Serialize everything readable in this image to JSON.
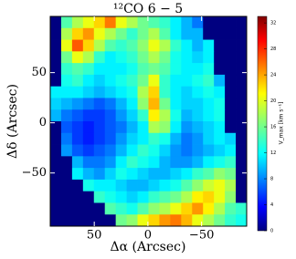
{
  "chart_data": {
    "type": "heatmap",
    "title": "¹²CO 6 − 5",
    "x_label": "Δα (Arcsec)",
    "y_label": "Δδ (Arcsec)",
    "colorbar_label": "V_max [km s⁻¹]",
    "xlim": [
      91,
      -92
    ],
    "ylim": [
      -103,
      106
    ],
    "xticks": [
      50,
      0,
      {
        "value": -50,
        "label": "−50"
      }
    ],
    "yticks": [
      50,
      0,
      {
        "value": -50,
        "label": "−50"
      }
    ],
    "clim": [
      0,
      33
    ],
    "cticks": [
      0,
      4,
      8,
      12,
      16,
      20,
      24,
      28,
      32
    ],
    "colormap": "jet",
    "z": [
      [
        0,
        15,
        18,
        20,
        22,
        25,
        20,
        18,
        16,
        15,
        14,
        12,
        10,
        8,
        0,
        0,
        0,
        0
      ],
      [
        0,
        18,
        22,
        24,
        20,
        18,
        16,
        14,
        16,
        18,
        15,
        12,
        10,
        10,
        0,
        0,
        0,
        0
      ],
      [
        0,
        20,
        26,
        22,
        18,
        15,
        14,
        15,
        17,
        20,
        18,
        14,
        12,
        10,
        12,
        0,
        0,
        0
      ],
      [
        0,
        16,
        20,
        18,
        14,
        12,
        13,
        14,
        16,
        18,
        16,
        13,
        12,
        11,
        12,
        0,
        0,
        0
      ],
      [
        0,
        14,
        15,
        14,
        12,
        12,
        12,
        13,
        15,
        16,
        15,
        13,
        12,
        12,
        13,
        0,
        0,
        0
      ],
      [
        0,
        13,
        14,
        12,
        11,
        12,
        13,
        14,
        16,
        20,
        14,
        12,
        12,
        13,
        14,
        10,
        0,
        0
      ],
      [
        12,
        12,
        12,
        11,
        10,
        11,
        12,
        13,
        18,
        22,
        14,
        12,
        11,
        12,
        13,
        12,
        0,
        0
      ],
      [
        11,
        10,
        9,
        8,
        7,
        8,
        10,
        12,
        17,
        23,
        16,
        12,
        11,
        11,
        12,
        13,
        0,
        0
      ],
      [
        10,
        8,
        7,
        6,
        6,
        7,
        9,
        11,
        14,
        21,
        18,
        13,
        10,
        11,
        12,
        13,
        0,
        0
      ],
      [
        0,
        7,
        6,
        5,
        6,
        7,
        8,
        10,
        12,
        18,
        17,
        12,
        9,
        10,
        11,
        12,
        0,
        0
      ],
      [
        0,
        8,
        6,
        5,
        6,
        7,
        9,
        11,
        12,
        14,
        13,
        10,
        8,
        9,
        11,
        12,
        11,
        0
      ],
      [
        0,
        9,
        7,
        6,
        7,
        8,
        10,
        12,
        14,
        13,
        11,
        9,
        8,
        9,
        10,
        11,
        12,
        0
      ],
      [
        0,
        0,
        10,
        8,
        8,
        9,
        12,
        14,
        13,
        12,
        10,
        9,
        9,
        10,
        12,
        13,
        14,
        0
      ],
      [
        0,
        0,
        12,
        10,
        9,
        11,
        13,
        12,
        11,
        10,
        10,
        11,
        12,
        14,
        15,
        17,
        16,
        0
      ],
      [
        0,
        0,
        0,
        13,
        12,
        12,
        11,
        10,
        10,
        11,
        12,
        13,
        15,
        17,
        19,
        20,
        18,
        0
      ],
      [
        0,
        0,
        0,
        0,
        14,
        13,
        12,
        11,
        12,
        14,
        15,
        16,
        18,
        21,
        22,
        20,
        17,
        0
      ],
      [
        0,
        0,
        0,
        0,
        0,
        15,
        14,
        13,
        15,
        17,
        18,
        20,
        22,
        24,
        21,
        18,
        15,
        14
      ],
      [
        0,
        0,
        0,
        0,
        0,
        0,
        16,
        17,
        20,
        22,
        24,
        25,
        23,
        20,
        18,
        16,
        14,
        13
      ]
    ]
  }
}
